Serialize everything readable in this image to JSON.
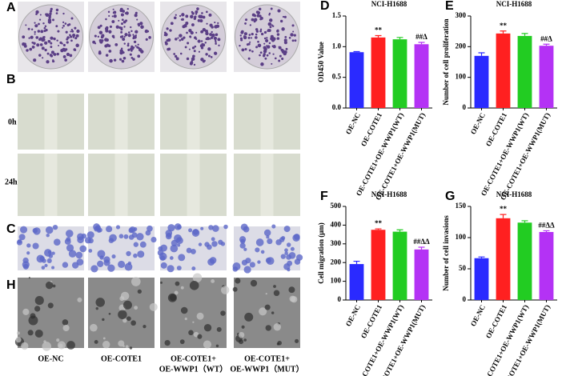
{
  "figure": {
    "panel_labels": [
      "A",
      "B",
      "C",
      "H"
    ],
    "row_labels": [
      "0h",
      "24h"
    ],
    "captions": [
      [
        "OE-NC"
      ],
      [
        "OE-COTE1"
      ],
      [
        "OE-COTE1+",
        "OE-WWP1（WT）"
      ],
      [
        "OE-COTE1+",
        "OE-WWP1（MUT）"
      ]
    ]
  },
  "chart_data": [
    {
      "type": "bar",
      "panel": "D",
      "title": "NCI-H1688",
      "y_label": "OD450 Value",
      "categories": [
        "OE-NC",
        "OE-COTE1",
        "OE-COTE1+OE-WWP1(WT)",
        "OE-COTE1+OE-WWP1(MUT)"
      ],
      "values": [
        0.91,
        1.15,
        1.12,
        1.04
      ],
      "errors": [
        0.01,
        0.03,
        0.03,
        0.03
      ],
      "significance": [
        null,
        "**",
        null,
        "##Δ"
      ],
      "colors": [
        "#2a2aff",
        "#ff2020",
        "#22cc22",
        "#b432f5"
      ],
      "ylim": [
        0,
        1.5
      ],
      "yticks": [
        {
          "value": 0,
          "label": "0.0"
        },
        {
          "value": 0.5,
          "label": "0.5"
        },
        {
          "value": 1,
          "label": "1.0"
        },
        {
          "value": 1.5,
          "label": "1.5"
        }
      ]
    },
    {
      "type": "bar",
      "panel": "E",
      "title": "NCI-H1688",
      "y_label": "Number of cell proliferation",
      "categories": [
        "OE-NC",
        "OE-COTE1",
        "OE-COTE1+OE-WWP1(WT)",
        "OE-COTE1+OE-WWP1(MUT)"
      ],
      "values": [
        170,
        243,
        235,
        203
      ],
      "errors": [
        10,
        8,
        8,
        5
      ],
      "significance": [
        null,
        "**",
        null,
        "##Δ"
      ],
      "colors": [
        "#2a2aff",
        "#ff2020",
        "#22cc22",
        "#b432f5"
      ],
      "ylim": [
        0,
        300
      ],
      "yticks": [
        0,
        100,
        200,
        300
      ]
    },
    {
      "type": "bar",
      "panel": "F",
      "title": "NCI-H1688",
      "y_label": "Cell migration (μm)",
      "categories": [
        "OE-NC",
        "OE-COTE1",
        "OE-COTE1+OE-WWP1(WT)",
        "OE-COTE1+OE-WWP1(MUT)"
      ],
      "values": [
        192,
        375,
        365,
        270
      ],
      "errors": [
        15,
        5,
        10,
        12
      ],
      "significance": [
        null,
        "**",
        null,
        "##ΔΔ"
      ],
      "colors": [
        "#2a2aff",
        "#ff2020",
        "#22cc22",
        "#b432f5"
      ],
      "ylim": [
        0,
        500
      ],
      "yticks": [
        0,
        100,
        200,
        300,
        400,
        500
      ]
    },
    {
      "type": "bar",
      "panel": "G",
      "title": "NCI-H1688",
      "y_label": "Number of cell invasions",
      "categories": [
        "OE-NC",
        "OE-COTE1",
        "OE-COTE1+OE-WWP1(WT)",
        "OE-COTE1+OE-WWP1(MUT)"
      ],
      "values": [
        67,
        131,
        124,
        109
      ],
      "errors": [
        2,
        6,
        3,
        2
      ],
      "significance": [
        null,
        "**",
        null,
        "##ΔΔ"
      ],
      "colors": [
        "#2a2aff",
        "#ff2020",
        "#22cc22",
        "#b432f5"
      ],
      "ylim": [
        0,
        150
      ],
      "yticks": [
        0,
        50,
        100,
        150
      ]
    }
  ]
}
